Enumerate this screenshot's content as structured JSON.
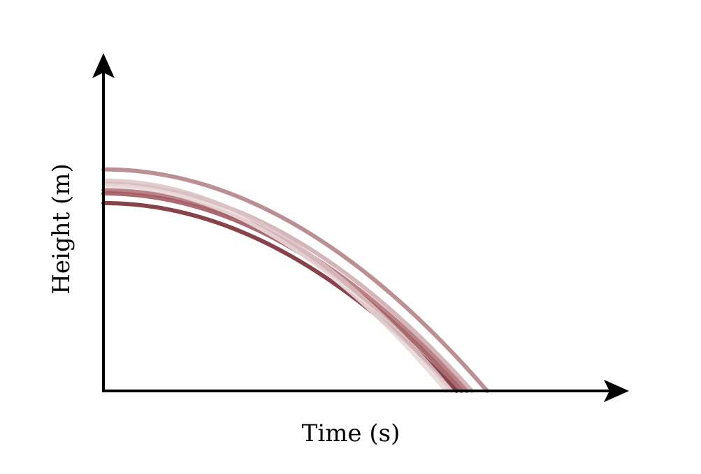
{
  "chart_data": {
    "type": "line",
    "title": "",
    "xlabel": "Time (s)",
    "ylabel": "Height (m)",
    "xlim": [
      0,
      1
    ],
    "ylim": [
      0,
      1
    ],
    "grid": false,
    "legend": "none",
    "ticks": false,
    "series": [
      {
        "color": "#7a2f35",
        "opacity": 0.9,
        "values": [
          [
            0.0,
            0.585
          ],
          [
            0.25,
            0.505
          ],
          [
            0.5,
            0.315
          ],
          [
            0.69,
            0.0
          ]
        ]
      },
      {
        "color": "#8b3a41",
        "opacity": 0.75,
        "values": [
          [
            0.0,
            0.615
          ],
          [
            0.25,
            0.525
          ],
          [
            0.5,
            0.33
          ],
          [
            0.7,
            0.0
          ]
        ]
      },
      {
        "color": "#9c4b52",
        "opacity": 0.7,
        "values": [
          [
            0.0,
            0.625
          ],
          [
            0.25,
            0.535
          ],
          [
            0.5,
            0.34
          ],
          [
            0.71,
            0.0
          ]
        ]
      },
      {
        "color": "#b07c80",
        "opacity": 0.85,
        "values": [
          [
            0.0,
            0.69
          ],
          [
            0.25,
            0.565
          ],
          [
            0.5,
            0.36
          ],
          [
            0.75,
            0.0
          ]
        ]
      },
      {
        "color": "#c9a3a6",
        "opacity": 0.8,
        "values": [
          [
            0.0,
            0.645
          ],
          [
            0.25,
            0.545
          ],
          [
            0.5,
            0.345
          ],
          [
            0.72,
            0.0
          ]
        ]
      },
      {
        "color": "#dcc3c5",
        "opacity": 0.85,
        "values": [
          [
            0.0,
            0.655
          ],
          [
            0.25,
            0.55
          ],
          [
            0.5,
            0.35
          ],
          [
            0.68,
            0.0
          ]
        ]
      },
      {
        "color": "#e9d8d9",
        "opacity": 0.9,
        "values": [
          [
            0.0,
            0.64
          ],
          [
            0.25,
            0.54
          ],
          [
            0.5,
            0.345
          ],
          [
            0.67,
            0.0
          ]
        ]
      }
    ]
  }
}
